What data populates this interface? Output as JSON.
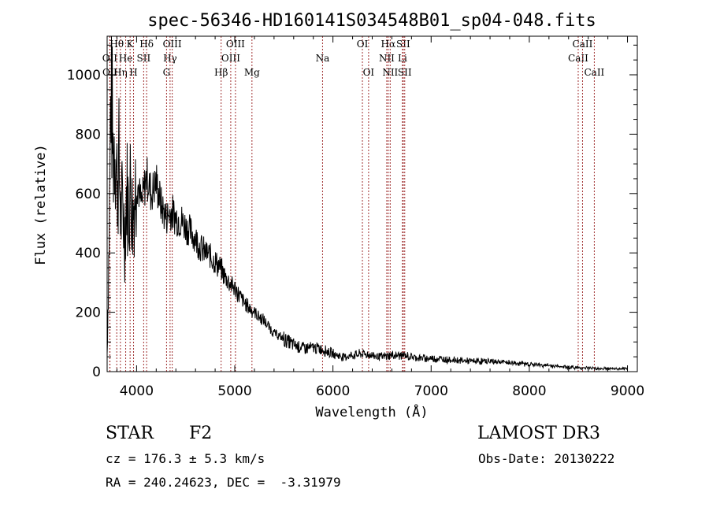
{
  "chart_data": {
    "type": "line",
    "title": "spec-56346-HD160141S034548B01_sp04-048.fits",
    "xlabel": "Wavelength (Å)",
    "ylabel": "Flux (relative)",
    "xlim": [
      3700,
      9100
    ],
    "ylim": [
      0,
      1130
    ],
    "xticks": [
      4000,
      5000,
      6000,
      7000,
      8000,
      9000
    ],
    "yticks": [
      0,
      200,
      400,
      600,
      800,
      1000
    ],
    "series": [
      {
        "name": "flux",
        "x": [
          3700,
          3720,
          3740,
          3760,
          3780,
          3800,
          3820,
          3840,
          3860,
          3880,
          3900,
          3920,
          3940,
          3960,
          3980,
          4000,
          4050,
          4100,
          4150,
          4200,
          4250,
          4300,
          4350,
          4400,
          4450,
          4500,
          4550,
          4600,
          4650,
          4700,
          4750,
          4800,
          4850,
          4900,
          4950,
          5000,
          5100,
          5200,
          5300,
          5400,
          5500,
          5600,
          5700,
          5800,
          5900,
          6000,
          6100,
          6200,
          6300,
          6400,
          6500,
          6600,
          6700,
          6800,
          6900,
          7000,
          7200,
          7400,
          7600,
          7800,
          8000,
          8200,
          8400,
          8600,
          8800,
          9000
        ],
        "y": [
          60,
          450,
          1000,
          720,
          800,
          650,
          700,
          520,
          560,
          460,
          620,
          540,
          640,
          520,
          600,
          650,
          560,
          660,
          600,
          640,
          560,
          520,
          540,
          520,
          510,
          490,
          470,
          450,
          420,
          400,
          390,
          370,
          350,
          320,
          300,
          280,
          230,
          200,
          170,
          130,
          110,
          90,
          80,
          80,
          75,
          60,
          50,
          55,
          60,
          55,
          50,
          55,
          55,
          50,
          45,
          45,
          40,
          35,
          35,
          30,
          25,
          20,
          15,
          12,
          10,
          8
        ]
      }
    ],
    "lines": [
      {
        "name": "OII",
        "wavelength": 3727,
        "row": 2
      },
      {
        "name": "OII",
        "wavelength": 3729,
        "row": 3
      },
      {
        "name": "Hθ",
        "wavelength": 3798,
        "row": 1
      },
      {
        "name": "Hη",
        "wavelength": 3835,
        "row": 3
      },
      {
        "name": "He",
        "wavelength": 3889,
        "row": 2
      },
      {
        "name": "K",
        "wavelength": 3934,
        "row": 1
      },
      {
        "name": "H",
        "wavelength": 3969,
        "row": 3
      },
      {
        "name": "SII",
        "wavelength": 4072,
        "row": 2
      },
      {
        "name": "Hδ",
        "wavelength": 4102,
        "row": 1
      },
      {
        "name": "G",
        "wavelength": 4305,
        "row": 3
      },
      {
        "name": "Hγ",
        "wavelength": 4341,
        "row": 2
      },
      {
        "name": "OIII",
        "wavelength": 4363,
        "row": 1
      },
      {
        "name": "Hβ",
        "wavelength": 4861,
        "row": 3
      },
      {
        "name": "OIII",
        "wavelength": 4959,
        "row": 2
      },
      {
        "name": "OIII",
        "wavelength": 5007,
        "row": 1
      },
      {
        "name": "Mg",
        "wavelength": 5175,
        "row": 3
      },
      {
        "name": "Na",
        "wavelength": 5894,
        "row": 2
      },
      {
        "name": "OI",
        "wavelength": 6300,
        "row": 1
      },
      {
        "name": "OI",
        "wavelength": 6363,
        "row": 3
      },
      {
        "name": "NII",
        "wavelength": 6548,
        "row": 2
      },
      {
        "name": "Hα",
        "wavelength": 6563,
        "row": 1
      },
      {
        "name": "NII",
        "wavelength": 6583,
        "row": 3
      },
      {
        "name": "Li",
        "wavelength": 6708,
        "row": 2
      },
      {
        "name": "SII",
        "wavelength": 6716,
        "row": 1
      },
      {
        "name": "SII",
        "wavelength": 6731,
        "row": 3
      },
      {
        "name": "CaII",
        "wavelength": 8498,
        "row": 2
      },
      {
        "name": "CaII",
        "wavelength": 8542,
        "row": 1
      },
      {
        "name": "CaII",
        "wavelength": 8662,
        "row": 3
      }
    ]
  },
  "info": {
    "class": "STAR",
    "subclass": "F2",
    "survey": "LAMOST DR3",
    "cz": "cz = 176.3 ± 5.3 km/s",
    "obs_date": "Obs-Date: 20130222",
    "coords": "RA = 240.24623, DEC =  -3.31979"
  },
  "colors": {
    "axis": "#000000",
    "spectrum": "#000000",
    "line_marker": "#a03030"
  }
}
